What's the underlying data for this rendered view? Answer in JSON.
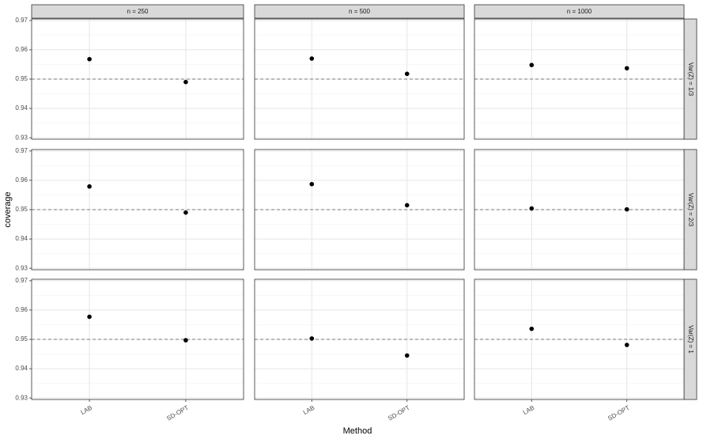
{
  "chart_data": {
    "type": "scatter",
    "xlabel": "Method",
    "ylabel": "coverage",
    "facet_cols": [
      "n = 250",
      "n = 500",
      "n = 1000"
    ],
    "facet_rows": [
      "Var(Z) = 1/3",
      "Var(Z) = 2/3",
      "Var(Z) = 1"
    ],
    "categories": [
      "LAB",
      "SD-OPT"
    ],
    "panels": [
      {
        "values": [
          0.9568,
          0.949
        ]
      },
      {
        "values": [
          0.957,
          0.9518
        ]
      },
      {
        "values": [
          0.9548,
          0.9537
        ]
      },
      {
        "values": [
          0.9579,
          0.949
        ]
      },
      {
        "values": [
          0.9587,
          0.9515
        ]
      },
      {
        "values": [
          0.9504,
          0.9501
        ]
      },
      {
        "values": [
          0.9577,
          0.9497
        ]
      },
      {
        "values": [
          0.9503,
          0.9445
        ]
      },
      {
        "values": [
          0.9536,
          0.9481
        ]
      }
    ],
    "color": "#000000",
    "hline": 0.95,
    "ylim": [
      0.9295,
      0.9705
    ],
    "yticks": [
      0.93,
      0.94,
      0.95,
      0.96,
      0.97
    ],
    "grid": true
  }
}
